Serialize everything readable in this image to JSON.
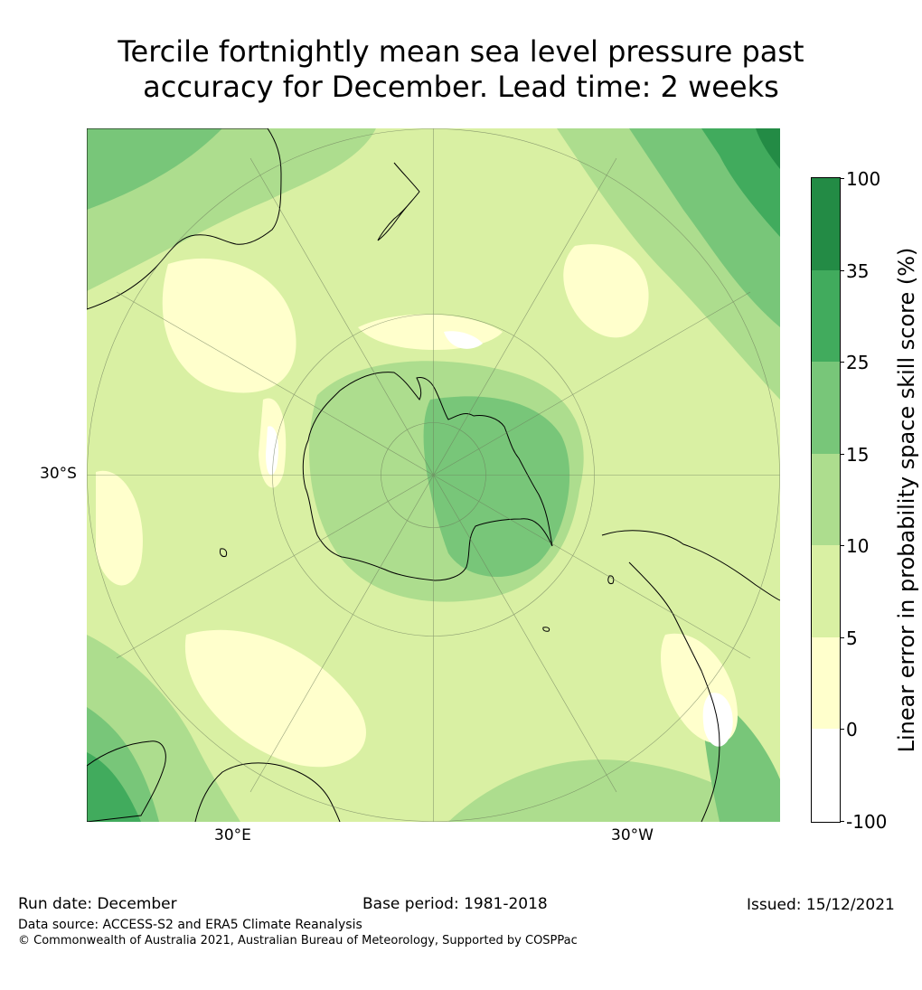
{
  "title": {
    "line1": "Tercile fortnightly mean sea level pressure past",
    "line2": "accuracy for December. Lead time: 2 weeks"
  },
  "map": {
    "projection": "South polar stereographic",
    "lat_label": "30°S",
    "lon_labels": [
      "30°E",
      "30°W"
    ],
    "regions": [
      "Antarctica",
      "Australia",
      "New Zealand",
      "South America",
      "Southern Africa",
      "Madagascar"
    ]
  },
  "colorbar": {
    "title": "Linear error in probability space skill score (%)",
    "boundaries": [
      "100",
      "35",
      "25",
      "15",
      "10",
      "5",
      "0",
      "-100"
    ],
    "colors": [
      "#238b45",
      "#41ab5d",
      "#78c679",
      "#addd8e",
      "#d9f0a3",
      "#ffffcc",
      "#ffffff"
    ]
  },
  "footer": {
    "run_date": "Run date: December",
    "base_period": "Base period: 1981-2018",
    "issued": "Issued: 15/12/2021",
    "data_source": "Data source: ACCESS-S2 and ERA5 Climate Reanalysis",
    "copyright": "© Commonwealth of Australia 2021, Australian Bureau of Meteorology, Supported by COSPPac"
  }
}
